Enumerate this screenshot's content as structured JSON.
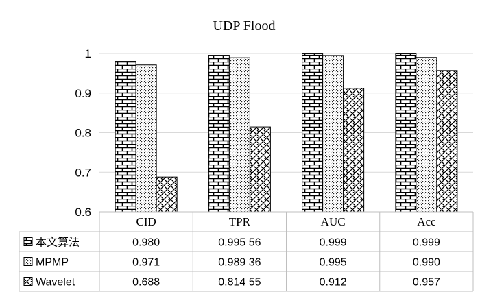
{
  "chart_data": {
    "type": "bar",
    "title": "UDP Flood",
    "categories": [
      "CID",
      "TPR",
      "AUC",
      "Acc"
    ],
    "ylim": [
      0.6,
      1.0
    ],
    "yticks": [
      "0.6",
      "0.7",
      "0.8",
      "0.9",
      "1"
    ],
    "grid": true,
    "legend_position": "left of data table",
    "series": [
      {
        "name": "本文算法",
        "values": [
          0.98,
          0.99556,
          0.999,
          0.999
        ],
        "labels": [
          "0.980",
          "0.995 56",
          "0.999",
          "0.999"
        ],
        "pattern": "brick"
      },
      {
        "name": "MPMP",
        "values": [
          0.971,
          0.98936,
          0.995,
          0.99
        ],
        "labels": [
          "0.971",
          "0.989 36",
          "0.995",
          "0.990"
        ],
        "pattern": "dots"
      },
      {
        "name": "Wavelet",
        "values": [
          0.688,
          0.81455,
          0.912,
          0.957
        ],
        "labels": [
          "0.688",
          "0.814 55",
          "0.912",
          "0.957"
        ],
        "pattern": "weave"
      }
    ],
    "colors": {
      "bar_stroke": "#000000",
      "grid": "#d9d9d9",
      "table_border": "#bfbfbf"
    }
  }
}
